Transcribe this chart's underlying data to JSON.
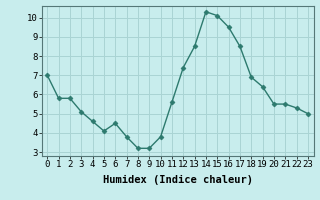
{
  "x": [
    0,
    1,
    2,
    3,
    4,
    5,
    6,
    7,
    8,
    9,
    10,
    11,
    12,
    13,
    14,
    15,
    16,
    17,
    18,
    19,
    20,
    21,
    22,
    23
  ],
  "y": [
    7.0,
    5.8,
    5.8,
    5.1,
    4.6,
    4.1,
    4.5,
    3.8,
    3.2,
    3.2,
    3.8,
    5.6,
    7.4,
    8.5,
    10.3,
    10.1,
    9.5,
    8.5,
    6.9,
    6.4,
    5.5,
    5.5,
    5.3,
    5.0
  ],
  "xlabel": "Humidex (Indice chaleur)",
  "ylim_min": 2.8,
  "ylim_max": 10.6,
  "xlim_min": -0.5,
  "xlim_max": 23.5,
  "line_color": "#2d7a6e",
  "bg_color": "#c8eded",
  "grid_color": "#aad4d4",
  "yticks": [
    3,
    4,
    5,
    6,
    7,
    8,
    9,
    10
  ],
  "xticks": [
    0,
    1,
    2,
    3,
    4,
    5,
    6,
    7,
    8,
    9,
    10,
    11,
    12,
    13,
    14,
    15,
    16,
    17,
    18,
    19,
    20,
    21,
    22,
    23
  ],
  "xlabel_fontsize": 7.5,
  "tick_fontsize": 6.5,
  "marker_size": 2.5,
  "line_width": 1.0
}
